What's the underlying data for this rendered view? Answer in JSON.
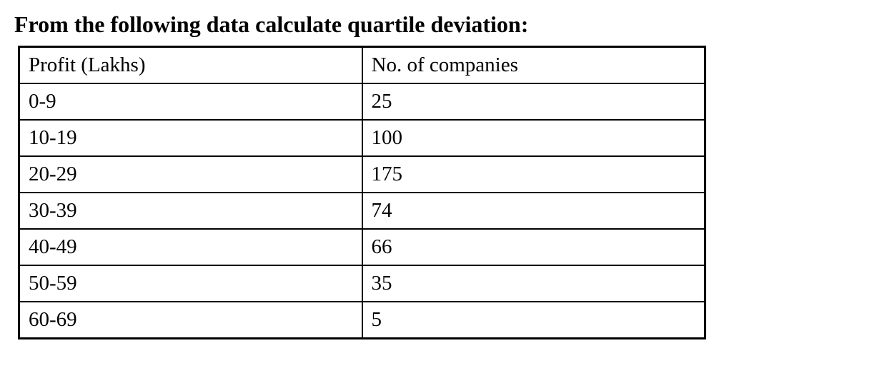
{
  "title": "From the following data calculate quartile deviation:",
  "table": {
    "headers": {
      "profit": "Profit (Lakhs)",
      "companies": "No. of companies"
    },
    "rows": [
      {
        "profit": "0-9",
        "companies": "25"
      },
      {
        "profit": "10-19",
        "companies": "100"
      },
      {
        "profit": "20-29",
        "companies": "175"
      },
      {
        "profit": "30-39",
        "companies": "74"
      },
      {
        "profit": "40-49",
        "companies": "66"
      },
      {
        "profit": "50-59",
        "companies": "35"
      },
      {
        "profit": "60-69",
        "companies": "5"
      }
    ]
  }
}
